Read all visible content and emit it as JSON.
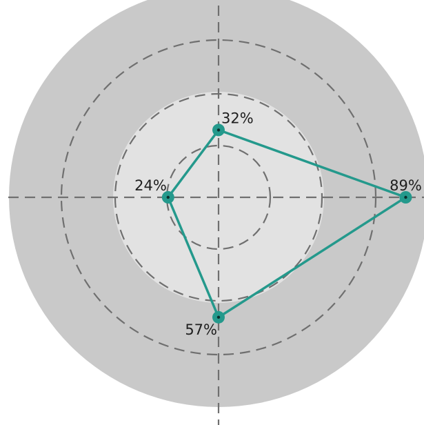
{
  "chart_data": {
    "type": "radar",
    "title": "",
    "axes": [
      "top",
      "right",
      "bottom",
      "left"
    ],
    "rmax": 100,
    "grid": true,
    "series": [
      {
        "color": "#24998c",
        "values": [
          32,
          89,
          57,
          24
        ],
        "labels": [
          "32%",
          "89%",
          "57%",
          "24%"
        ]
      }
    ],
    "colors": {
      "outer_disc": "#c9c9c9",
      "inner_disc": "#e2e2e2",
      "grid": "#6f6f6f"
    }
  }
}
